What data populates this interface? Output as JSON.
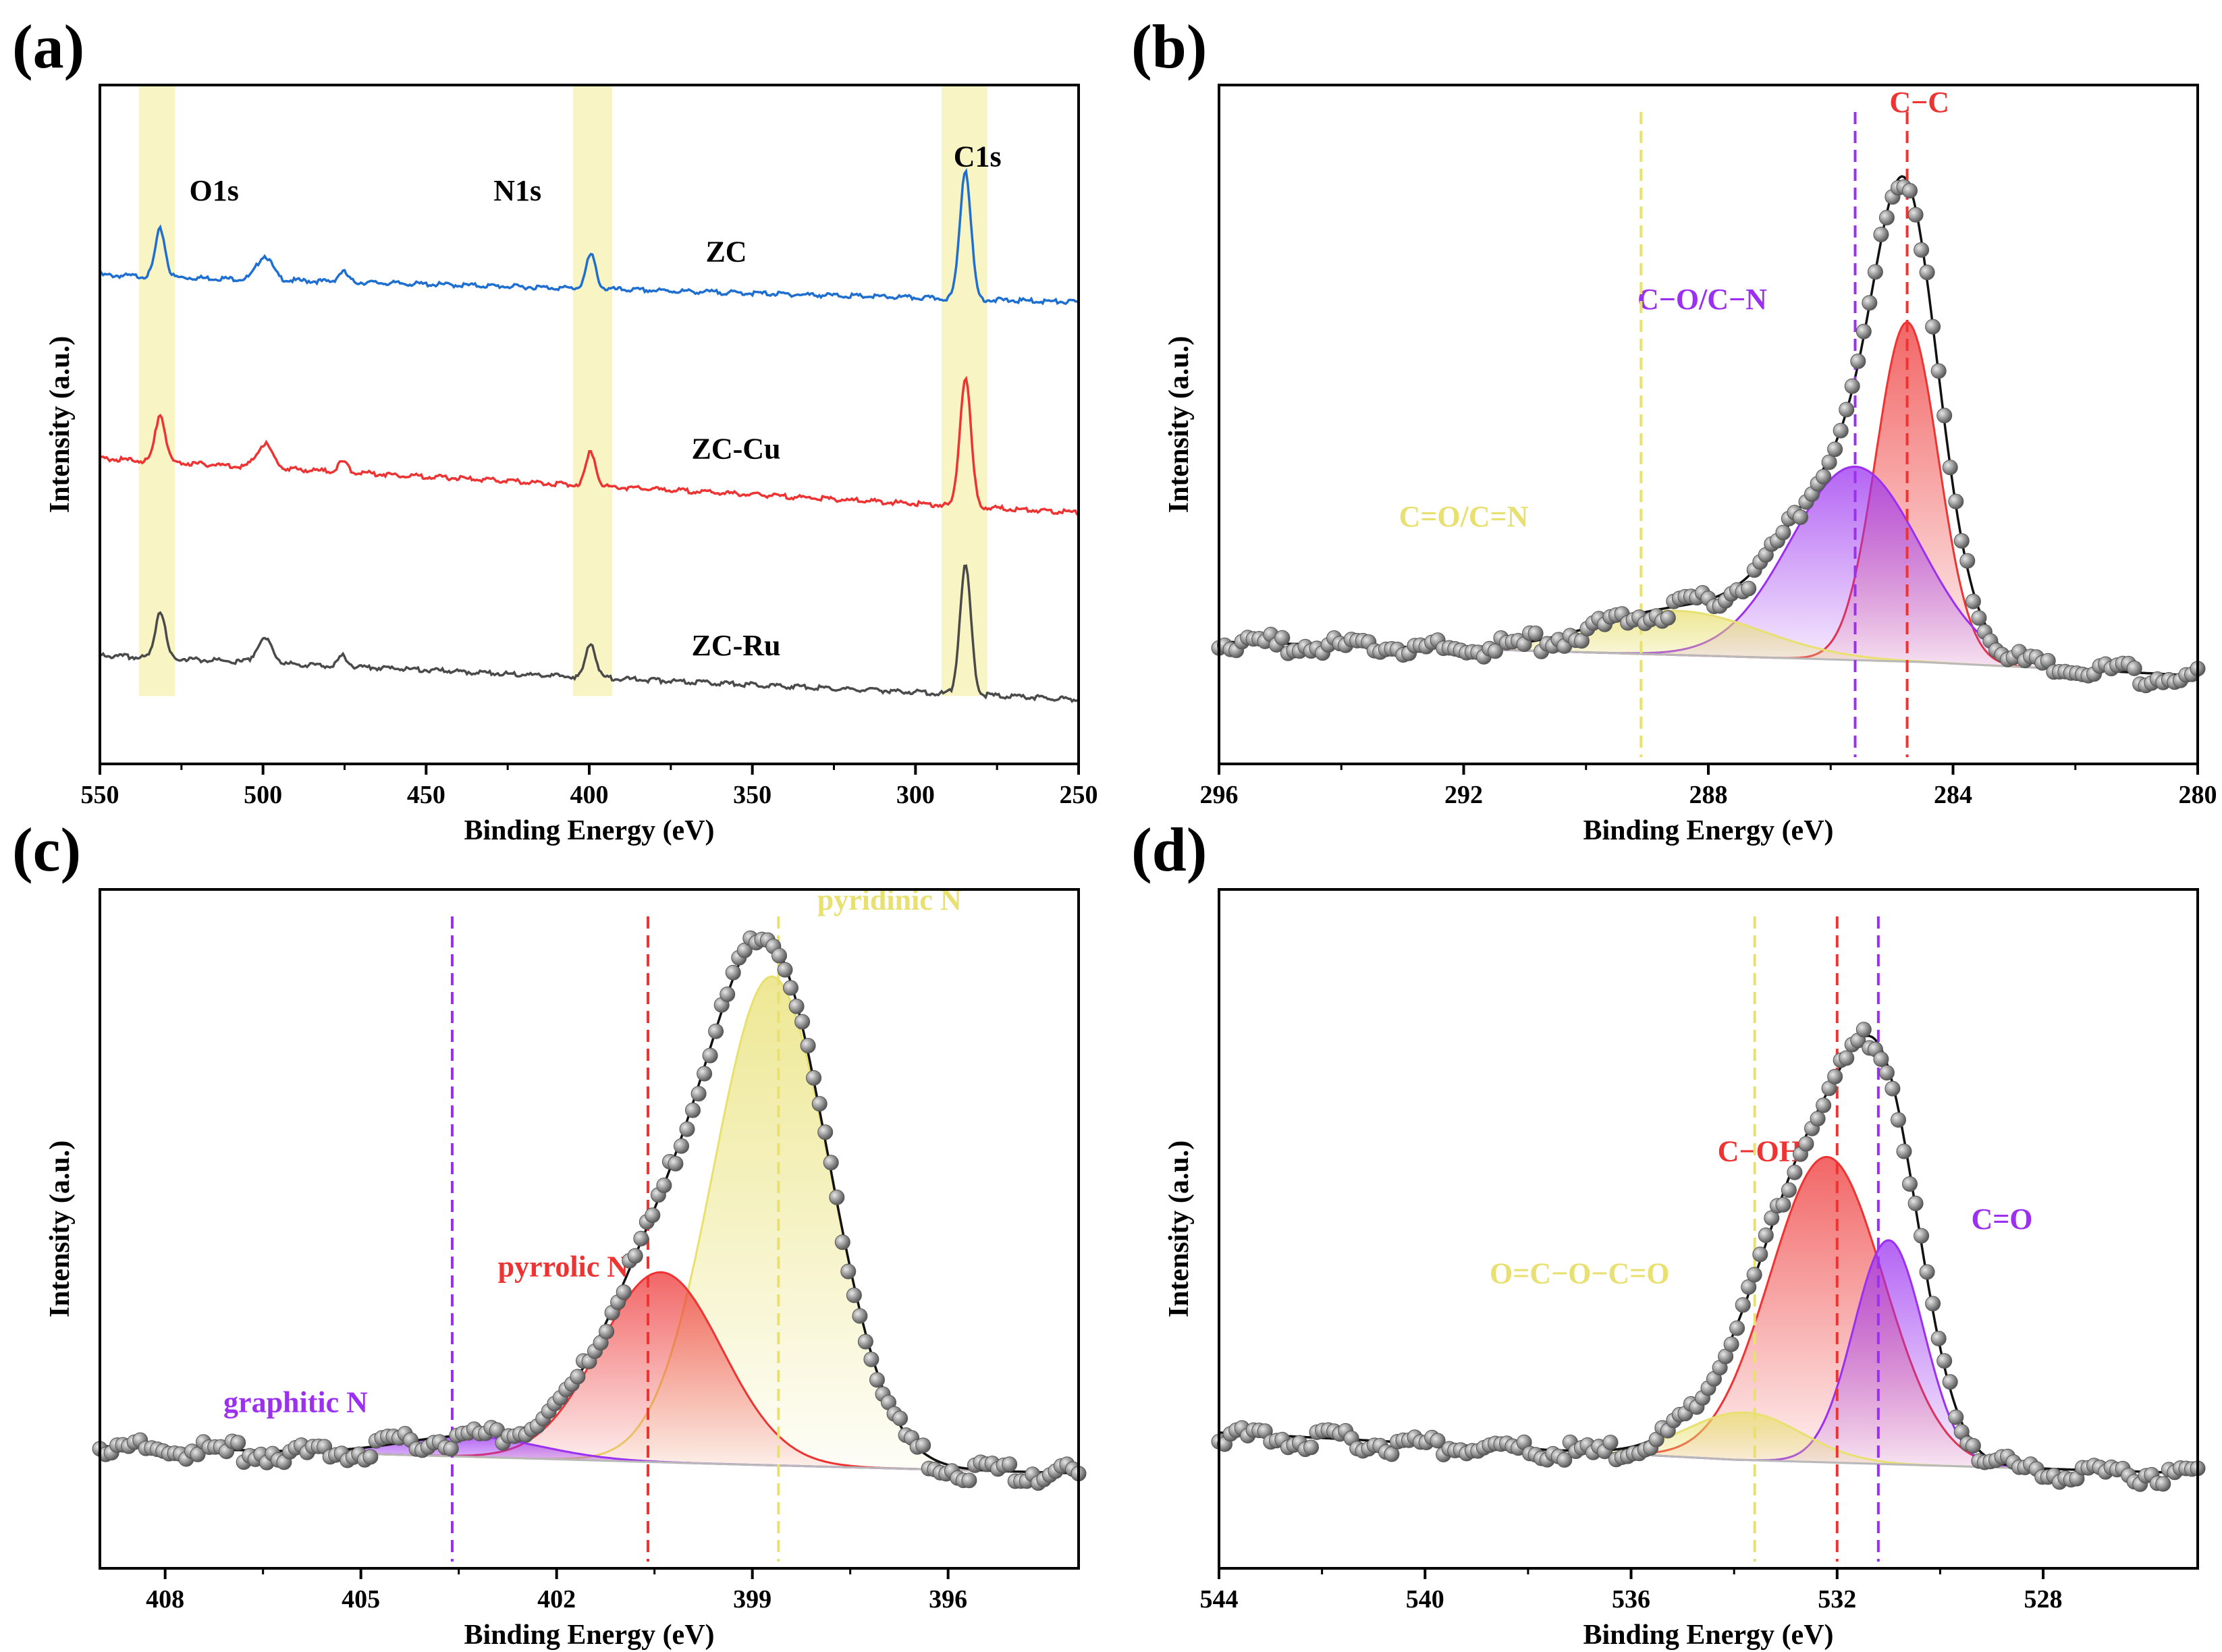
{
  "figure": {
    "panel_labels": [
      "(a)",
      "(b)",
      "(c)",
      "(d)"
    ]
  },
  "colors": {
    "blue": "#1f6fd0",
    "red": "#ee3333",
    "dark": "#4a4a4a",
    "highlight": "#f5f0b0",
    "purple": "#9b30f0",
    "yellow": "#e8e070",
    "dot": "#8a8a8a"
  },
  "chart_data": [
    {
      "id": "a",
      "type": "line",
      "xlabel": "Binding Energy (eV)",
      "ylabel": "Intensity (a.u.)",
      "xlim": [
        550,
        250
      ],
      "ylim": [
        0,
        100
      ],
      "xticks": [
        550,
        500,
        450,
        400,
        350,
        300,
        250
      ],
      "highlight_bands": [
        [
          538,
          527
        ],
        [
          405,
          393
        ],
        [
          292,
          278
        ]
      ],
      "peak_labels": [
        {
          "text": "O1s",
          "x": 515,
          "y": 83
        },
        {
          "text": "N1s",
          "x": 422,
          "y": 83
        },
        {
          "text": "C1s",
          "x": 281,
          "y": 88
        }
      ],
      "peaks": [
        {
          "center": 531.5,
          "height": 7,
          "width": 1.6
        },
        {
          "center": 499.5,
          "height": 3.5,
          "width": 2.5
        },
        {
          "center": 475.5,
          "height": 1.5,
          "width": 1.5
        },
        {
          "center": 399.5,
          "height": 5,
          "width": 1.6
        },
        {
          "center": 284.7,
          "height": 19,
          "width": 1.8
        }
      ],
      "series": [
        {
          "name": "ZC",
          "color_key": "blue",
          "label_x": 358,
          "label_y": 74,
          "baseline_start": 72,
          "baseline_end": 68,
          "amp": 1.0
        },
        {
          "name": "ZC-Cu",
          "color_key": "red",
          "label_x": 355,
          "label_y": 45,
          "baseline_start": 45,
          "baseline_end": 37,
          "amp": 1.0
        },
        {
          "name": "ZC-Ru",
          "color_key": "dark",
          "label_x": 355,
          "label_y": 16,
          "baseline_start": 16,
          "baseline_end": 9.5,
          "amp": 1.0
        }
      ]
    },
    {
      "id": "b",
      "type": "scatter",
      "xlabel": "Binding Energy (eV)",
      "ylabel": "Intensity (a.u.)",
      "xlim": [
        296,
        280
      ],
      "ylim": [
        0,
        100
      ],
      "xticks": [
        296,
        292,
        288,
        284,
        280
      ],
      "baseline": [
        [
          296,
          18
        ],
        [
          284.5,
          15
        ],
        [
          280,
          13
        ]
      ],
      "fit_envelope": true,
      "components": [
        {
          "name": "C−C",
          "center": 284.75,
          "height": 50,
          "fwhm": 1.2,
          "color_key": "red"
        },
        {
          "name": "C−O/C−N",
          "center": 285.6,
          "height": 28.5,
          "fwhm": 2.5,
          "color_key": "purple"
        },
        {
          "name": "C=O/C=N",
          "center": 288.5,
          "height": 6.5,
          "fwhm": 3.2,
          "color_key": "yellow"
        }
      ],
      "markers": [
        {
          "x": 284.75,
          "color_key": "red",
          "label": "C−C",
          "label_x": 284.55,
          "label_y": 96
        },
        {
          "x": 285.6,
          "color_key": "purple",
          "label": "C−O/C−N",
          "label_x": 288.1,
          "label_y": 67
        },
        {
          "x": 289.1,
          "color_key": "yellow",
          "label": "C=O/C=N",
          "label_x": 292.0,
          "label_y": 35
        }
      ]
    },
    {
      "id": "c",
      "type": "scatter",
      "xlabel": "Binding Energy (eV)",
      "ylabel": "Intensity (a.u.)",
      "xlim": [
        409,
        394
      ],
      "ylim": [
        0,
        100
      ],
      "xticks": [
        408,
        405,
        402,
        399,
        396
      ],
      "baseline": [
        [
          409,
          18
        ],
        [
          400,
          15.5
        ],
        [
          394,
          14
        ]
      ],
      "fit_envelope": true,
      "components": [
        {
          "name": "pyridinic N",
          "center": 398.7,
          "height": 72,
          "fwhm": 2.1,
          "color_key": "yellow"
        },
        {
          "name": "pyrrolic N",
          "center": 400.4,
          "height": 28,
          "fwhm": 2.2,
          "color_key": "red"
        },
        {
          "name": "graphitic N",
          "center": 403.3,
          "height": 3,
          "fwhm": 2.5,
          "color_key": "purple"
        }
      ],
      "markers": [
        {
          "x": 398.6,
          "color_key": "yellow",
          "label": "pyridinic N",
          "label_x": 396.9,
          "label_y": 97
        },
        {
          "x": 400.6,
          "color_key": "red",
          "label": "pyrrolic N",
          "label_x": 401.9,
          "label_y": 43
        },
        {
          "x": 403.6,
          "color_key": "purple",
          "label": "graphitic N",
          "label_x": 406.0,
          "label_y": 23
        }
      ]
    },
    {
      "id": "d",
      "type": "scatter",
      "xlabel": "Binding Energy (eV)",
      "ylabel": "Intensity (a.u.)",
      "xlim": [
        544,
        525
      ],
      "ylim": [
        0,
        100
      ],
      "xticks": [
        544,
        540,
        536,
        532,
        528
      ],
      "baseline": [
        [
          544,
          20
        ],
        [
          534,
          16
        ],
        [
          525,
          14
        ]
      ],
      "fit_envelope": true,
      "components": [
        {
          "name": "C−OH",
          "center": 532.2,
          "height": 45,
          "fwhm": 2.6,
          "color_key": "red"
        },
        {
          "name": "C=O",
          "center": 531.0,
          "height": 33,
          "fwhm": 1.6,
          "color_key": "purple"
        },
        {
          "name": "O=C−O−C=O",
          "center": 533.8,
          "height": 7,
          "fwhm": 2.6,
          "color_key": "yellow"
        }
      ],
      "markers": [
        {
          "x": 532.0,
          "color_key": "red",
          "label": "C−OH",
          "label_x": 533.5,
          "label_y": 60
        },
        {
          "x": 531.2,
          "color_key": "purple",
          "label": "C=O",
          "label_x": 528.8,
          "label_y": 50
        },
        {
          "x": 533.6,
          "color_key": "yellow",
          "label": "O=C−O−C=O",
          "label_x": 537.0,
          "label_y": 42
        }
      ]
    }
  ]
}
